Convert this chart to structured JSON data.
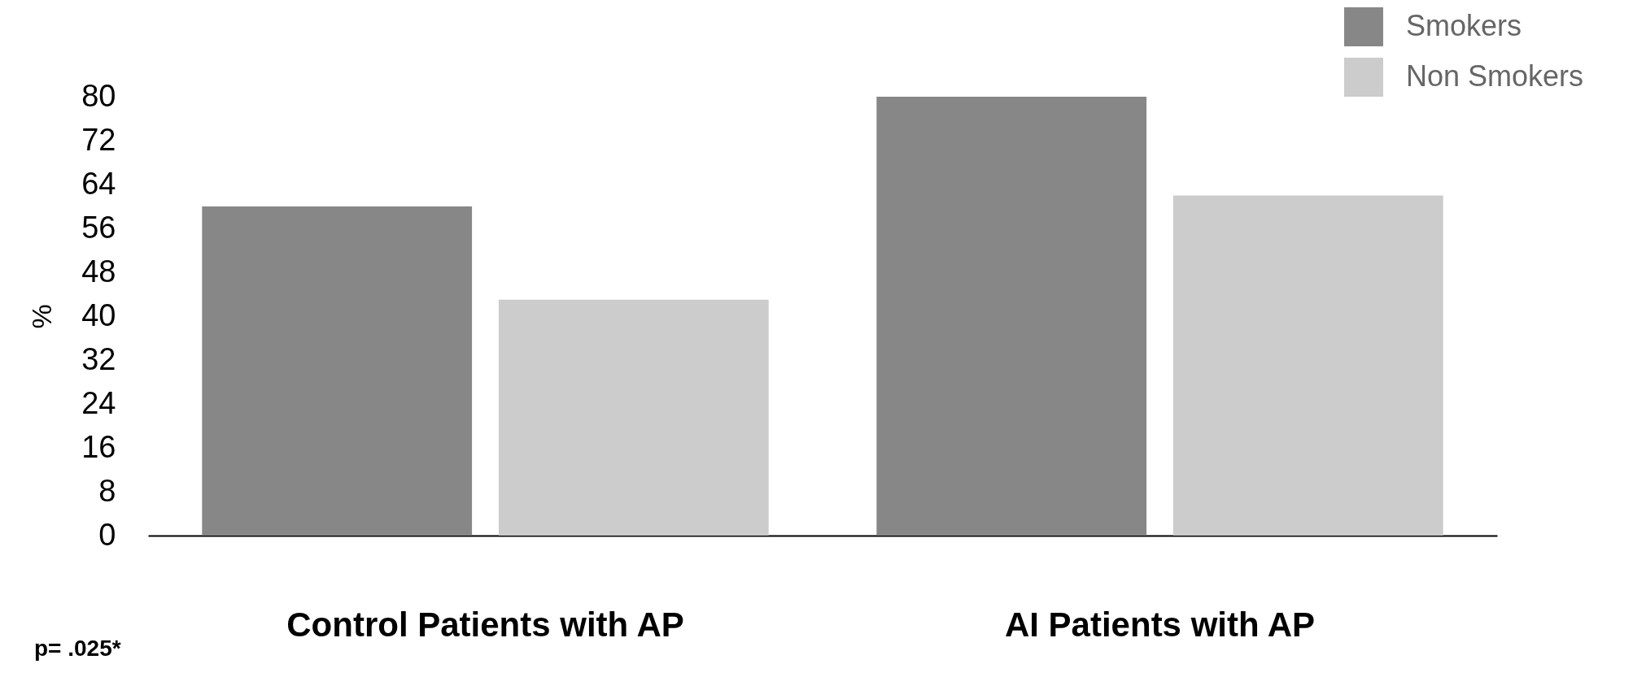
{
  "chart_data": {
    "type": "bar",
    "categories": [
      "Control Patients with AP",
      "AI  Patients with AP"
    ],
    "series": [
      {
        "name": "Smokers",
        "color": "#878787",
        "values": [
          60,
          80
        ]
      },
      {
        "name": "Non Smokers",
        "color": "#cccccc",
        "values": [
          43,
          62
        ]
      }
    ],
    "ylabel": "%",
    "ylim": [
      0,
      80
    ],
    "yticks": [
      0,
      8,
      16,
      24,
      32,
      40,
      48,
      56,
      64,
      72,
      80
    ],
    "grid": false,
    "legend": "top right",
    "annotations": [
      "p= .025*"
    ]
  }
}
